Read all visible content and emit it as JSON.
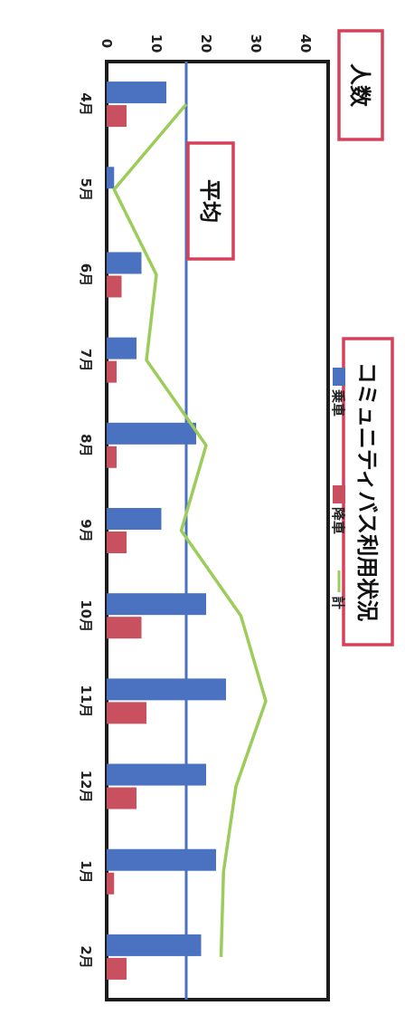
{
  "chart_data": {
    "type": "bar",
    "title": "コミュニティバス利用状況",
    "ylabel": "人数",
    "categories": [
      "4月",
      "5月",
      "6月",
      "7月",
      "8月",
      "9月",
      "10月",
      "11月",
      "12月",
      "1月",
      "2月"
    ],
    "ylim": [
      0,
      40
    ],
    "yticks": [
      "0",
      "10",
      "20",
      "30",
      "40"
    ],
    "series": [
      {
        "name": "乗車",
        "kind": "bar",
        "color": "#4a72c0",
        "values": [
          12,
          1.5,
          7,
          6,
          18,
          11,
          20,
          24,
          20,
          22,
          19
        ]
      },
      {
        "name": "降車",
        "kind": "bar",
        "color": "#c9505f",
        "values": [
          4,
          0,
          3,
          2,
          2,
          4,
          7,
          8,
          6,
          1.5,
          4
        ]
      },
      {
        "name": "計",
        "kind": "line",
        "color": "#9ccc5a",
        "values": [
          16,
          1.5,
          10,
          8,
          20,
          15,
          27,
          32,
          26,
          23.5,
          23
        ]
      }
    ],
    "average": {
      "label": "平均",
      "value": 16,
      "color": "#4a72c0"
    },
    "grid": false,
    "legend_position": "bottom"
  }
}
